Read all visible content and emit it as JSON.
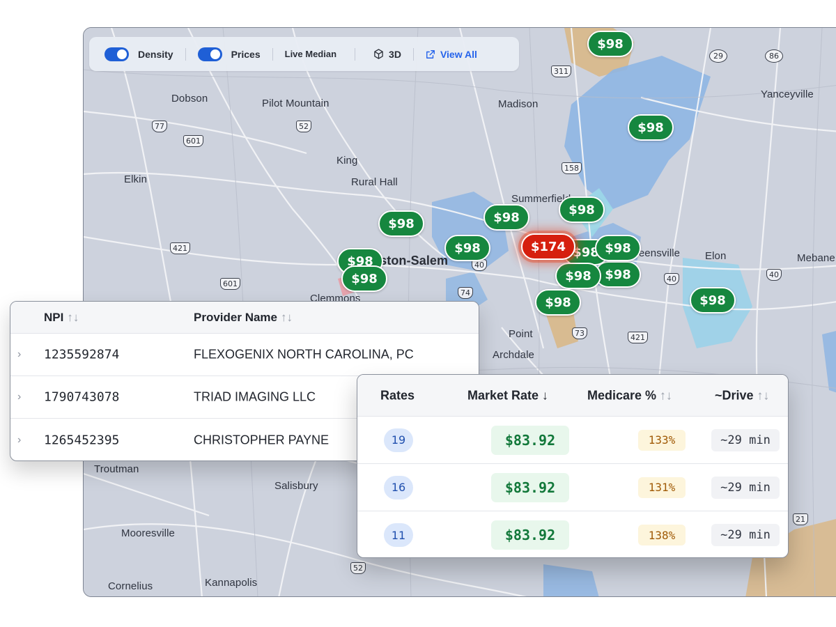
{
  "toolbar": {
    "density_label": "Density",
    "prices_label": "Prices",
    "live_median_label": "Live Median",
    "threeD_label": "3D",
    "view_all_label": "View All",
    "density_on": true,
    "prices_on": true
  },
  "map": {
    "places": [
      "Dobson",
      "Pilot Mountain",
      "Madison",
      "Yanceyville",
      "Elkin",
      "King",
      "Rural Hall",
      "Summerfield",
      "Winston-Salem",
      "Greensville",
      "Elon",
      "Mebane",
      "Clemmons",
      "Archdale",
      "Point",
      "Troutman",
      "Salisbury",
      "Mooresville",
      "Cornelius",
      "Kannapolis"
    ],
    "shields": [
      "29",
      "86",
      "311",
      "77",
      "601",
      "52",
      "158",
      "421",
      "601",
      "40",
      "74",
      "40",
      "73",
      "421",
      "40",
      "21",
      "52"
    ],
    "price_pins": [
      "$98",
      "$98",
      "$98",
      "$98",
      "$98",
      "$98",
      "$98",
      "$98",
      "$98",
      "$98",
      "$98",
      "$98",
      "$98",
      "$98"
    ],
    "hot_pin": "$174"
  },
  "providers": {
    "columns": [
      "NPI",
      "Provider Name"
    ],
    "sort_glyph": "↑↓",
    "rows": [
      {
        "npi": "1235592874",
        "name": "FLEXOGENIX NORTH CAROLINA, PC"
      },
      {
        "npi": "1790743078",
        "name": "TRIAD IMAGING LLC"
      },
      {
        "npi": "1265452395",
        "name": "CHRISTOPHER PAYNE"
      }
    ]
  },
  "rates": {
    "columns": {
      "rates": "Rates",
      "market": "Market Rate",
      "market_sort": "↓",
      "medicare": "Medicare %",
      "medicare_sort": "↑↓",
      "drive": "~Drive",
      "drive_sort": "↑↓"
    },
    "rows": [
      {
        "count": "19",
        "market_rate": "$83.92",
        "medicare_pct": "133%",
        "drive": "~29 min"
      },
      {
        "count": "16",
        "market_rate": "$83.92",
        "medicare_pct": "131%",
        "drive": "~29 min"
      },
      {
        "count": "11",
        "market_rate": "$83.92",
        "medicare_pct": "138%",
        "drive": "~29 min"
      }
    ]
  },
  "colors": {
    "pin_green": "#16873f",
    "pin_hot": "#d61f0e",
    "toggle_blue": "#1f5fd6",
    "price_text": "#12783a"
  }
}
